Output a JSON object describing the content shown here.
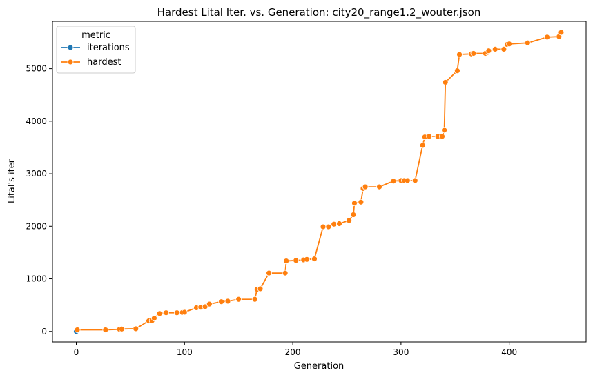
{
  "chart_data": {
    "type": "line",
    "title": "Hardest Lital Iter. vs. Generation: city20_range1.2_wouter.json",
    "xlabel": "Generation",
    "ylabel": "Lital's iter",
    "xlim": [
      -22,
      471
    ],
    "ylim": [
      -200,
      5900
    ],
    "x_ticks": [
      0,
      100,
      200,
      300,
      400
    ],
    "y_ticks": [
      0,
      1000,
      2000,
      3000,
      4000,
      5000
    ],
    "grid": false,
    "legend": {
      "title": "metric",
      "position": "top-left"
    },
    "series": [
      {
        "name": "iterations",
        "color": "#1f77b4",
        "marker": "circle",
        "x": [
          0,
          1
        ],
        "y": [
          0,
          30
        ]
      },
      {
        "name": "hardest",
        "color": "#ff7f0e",
        "marker": "circle",
        "x": [
          1,
          27,
          40,
          42,
          55,
          67,
          70,
          72,
          77,
          83,
          93,
          98,
          100,
          111,
          115,
          119,
          123,
          134,
          140,
          150,
          165,
          167,
          170,
          178,
          193,
          194,
          203,
          210,
          213,
          220,
          228,
          233,
          238,
          243,
          252,
          256,
          257,
          263,
          265,
          267,
          280,
          293,
          300,
          303,
          306,
          313,
          320,
          322,
          326,
          334,
          338,
          340,
          341,
          352,
          354,
          365,
          367,
          378,
          380,
          381,
          387,
          395,
          398,
          400,
          417,
          435,
          446,
          448
        ],
        "y": [
          30,
          30,
          40,
          45,
          50,
          200,
          205,
          250,
          340,
          355,
          355,
          360,
          365,
          450,
          460,
          470,
          520,
          565,
          575,
          610,
          610,
          800,
          810,
          1110,
          1110,
          1340,
          1350,
          1360,
          1370,
          1380,
          1990,
          1990,
          2040,
          2050,
          2110,
          2220,
          2440,
          2460,
          2720,
          2750,
          2750,
          2860,
          2870,
          2870,
          2870,
          2870,
          3540,
          3700,
          3710,
          3710,
          3710,
          3830,
          4740,
          4960,
          5270,
          5280,
          5290,
          5290,
          5310,
          5340,
          5370,
          5370,
          5460,
          5470,
          5490,
          5600,
          5610,
          5690
        ]
      }
    ]
  }
}
